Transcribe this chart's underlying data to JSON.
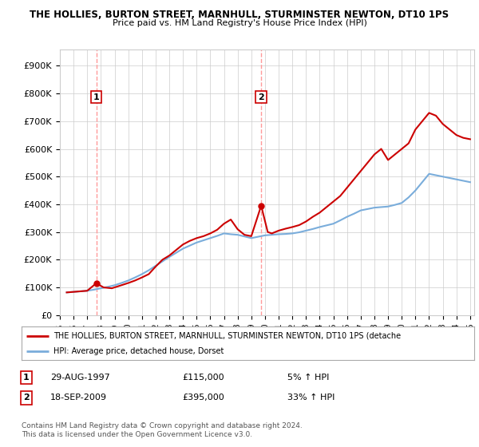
{
  "title": "THE HOLLIES, BURTON STREET, MARNHULL, STURMINSTER NEWTON, DT10 1PS",
  "subtitle": "Price paid vs. HM Land Registry's House Price Index (HPI)",
  "ylabel_ticks": [
    "£0",
    "£100K",
    "£200K",
    "£300K",
    "£400K",
    "£500K",
    "£600K",
    "£700K",
    "£800K",
    "£900K"
  ],
  "ytick_values": [
    0,
    100000,
    200000,
    300000,
    400000,
    500000,
    600000,
    700000,
    800000,
    900000
  ],
  "ylim": [
    0,
    960000
  ],
  "xlim_start": 1995.3,
  "xlim_end": 2025.3,
  "purchase1_x": 1997.66,
  "purchase1_y": 115000,
  "purchase1_label": "1",
  "purchase2_x": 2009.72,
  "purchase2_y": 395000,
  "purchase2_label": "2",
  "vline1_x": 1997.66,
  "vline2_x": 2009.72,
  "red_line_color": "#cc0000",
  "blue_line_color": "#7aaddb",
  "vline_color": "#ff9999",
  "grid_color": "#cccccc",
  "background_color": "#ffffff",
  "legend_text1": "THE HOLLIES, BURTON STREET, MARNHULL, STURMINSTER NEWTON, DT10 1PS (detache",
  "legend_text2": "HPI: Average price, detached house, Dorset",
  "note1_label": "1",
  "note1_date": "29-AUG-1997",
  "note1_price": "£115,000",
  "note1_hpi": "5% ↑ HPI",
  "note2_label": "2",
  "note2_date": "18-SEP-2009",
  "note2_price": "£395,000",
  "note2_hpi": "33% ↑ HPI",
  "copyright_text": "Contains HM Land Registry data © Crown copyright and database right 2024.\nThis data is licensed under the Open Government Licence v3.0.",
  "hpi_years": [
    1995.5,
    1996.0,
    1996.5,
    1997.0,
    1997.5,
    1998.0,
    1998.5,
    1999.0,
    1999.5,
    2000.0,
    2000.5,
    2001.0,
    2001.5,
    2002.0,
    2002.5,
    2003.0,
    2003.5,
    2004.0,
    2004.5,
    2005.0,
    2005.5,
    2006.0,
    2006.5,
    2007.0,
    2007.5,
    2008.0,
    2008.5,
    2009.0,
    2009.5,
    2010.0,
    2010.5,
    2011.0,
    2011.5,
    2012.0,
    2012.5,
    2013.0,
    2013.5,
    2014.0,
    2014.5,
    2015.0,
    2015.5,
    2016.0,
    2016.5,
    2017.0,
    2017.5,
    2018.0,
    2018.5,
    2019.0,
    2019.5,
    2020.0,
    2020.5,
    2021.0,
    2021.5,
    2022.0,
    2022.5,
    2023.0,
    2023.5,
    2024.0,
    2024.5,
    2025.0
  ],
  "hpi_values": [
    82000,
    84000,
    86000,
    88000,
    92000,
    97000,
    102000,
    108000,
    116000,
    125000,
    136000,
    148000,
    162000,
    178000,
    194000,
    210000,
    225000,
    240000,
    251000,
    262000,
    270000,
    278000,
    286000,
    295000,
    292000,
    290000,
    284000,
    278000,
    283000,
    288000,
    290000,
    292000,
    293000,
    295000,
    299000,
    305000,
    311000,
    318000,
    324000,
    330000,
    342000,
    355000,
    366000,
    378000,
    383000,
    388000,
    390000,
    392000,
    398000,
    405000,
    425000,
    450000,
    480000,
    510000,
    505000,
    500000,
    495000,
    490000,
    485000,
    480000
  ],
  "prop_years": [
    1995.5,
    1996.0,
    1996.5,
    1997.0,
    1997.66,
    1998.2,
    1998.8,
    1999.5,
    2000.0,
    2000.5,
    2001.0,
    2001.5,
    2002.0,
    2002.5,
    2003.0,
    2003.5,
    2004.0,
    2004.5,
    2005.0,
    2005.5,
    2006.0,
    2006.5,
    2007.0,
    2007.5,
    2008.0,
    2008.5,
    2009.0,
    2009.72,
    2010.2,
    2010.5,
    2011.0,
    2011.5,
    2012.0,
    2012.5,
    2013.0,
    2013.5,
    2014.0,
    2014.5,
    2015.0,
    2015.5,
    2016.0,
    2016.5,
    2017.0,
    2017.5,
    2018.0,
    2018.5,
    2019.0,
    2019.5,
    2020.0,
    2020.5,
    2021.0,
    2021.5,
    2022.0,
    2022.5,
    2023.0,
    2023.5,
    2024.0,
    2024.5,
    2025.0
  ],
  "prop_values": [
    82000,
    84000,
    86000,
    88000,
    115000,
    100000,
    97000,
    108000,
    116000,
    125000,
    136000,
    148000,
    175000,
    200000,
    215000,
    235000,
    255000,
    268000,
    278000,
    285000,
    295000,
    308000,
    330000,
    345000,
    310000,
    290000,
    285000,
    395000,
    300000,
    295000,
    305000,
    312000,
    318000,
    325000,
    338000,
    355000,
    370000,
    390000,
    410000,
    430000,
    460000,
    490000,
    520000,
    550000,
    580000,
    600000,
    560000,
    580000,
    600000,
    620000,
    670000,
    700000,
    730000,
    720000,
    690000,
    670000,
    650000,
    640000,
    635000
  ]
}
